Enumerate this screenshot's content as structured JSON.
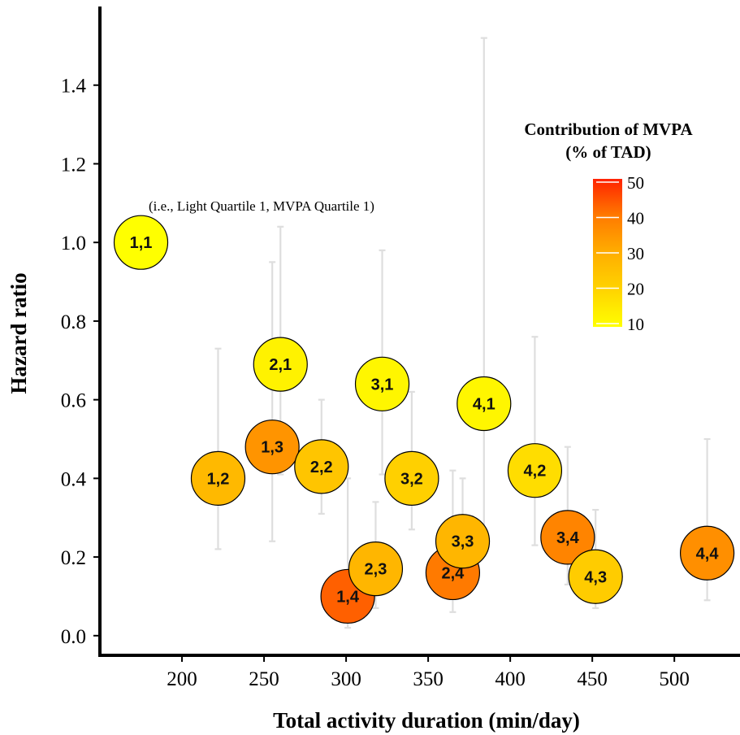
{
  "chart_data": {
    "type": "scatter",
    "xlabel": "Total activity duration (min/day)",
    "ylabel": "Hazard ratio",
    "xlim": [
      150,
      540
    ],
    "ylim": [
      -0.05,
      1.6
    ],
    "x_ticks": [
      200,
      250,
      300,
      350,
      400,
      450,
      500
    ],
    "y_ticks": [
      0.0,
      0.2,
      0.4,
      0.6,
      0.8,
      1.0,
      1.2,
      1.4
    ],
    "x_tick_labels": [
      "200",
      "250",
      "300",
      "350",
      "400",
      "450",
      "500"
    ],
    "y_tick_labels": [
      "0.0",
      "0.2",
      "0.4",
      "0.6",
      "0.8",
      "1.0",
      "1.2",
      "1.4"
    ],
    "annotation": "(i.e., Light Quartile 1, MVPA Quartile 1)",
    "legend": {
      "title_line1": "Contribution of MVPA",
      "title_line2": "(% of TAD)",
      "position": "right",
      "range": [
        10,
        50
      ],
      "ticks": [
        10,
        20,
        30,
        40,
        50
      ],
      "tick_labels": [
        "10",
        "20",
        "30",
        "40",
        "50"
      ],
      "colors": [
        "#ffff00",
        "#ffd400",
        "#ffae00",
        "#ff7a00",
        "#ff2200"
      ]
    },
    "points": [
      {
        "label": "1,1",
        "x": 175,
        "y": 1.0,
        "ci_low": null,
        "ci_high": null,
        "mvpa_pct": 10
      },
      {
        "label": "1,2",
        "x": 222,
        "y": 0.4,
        "ci_low": 0.22,
        "ci_high": 0.73,
        "mvpa_pct": 27
      },
      {
        "label": "1,3",
        "x": 255,
        "y": 0.48,
        "ci_low": 0.24,
        "ci_high": 0.95,
        "mvpa_pct": 35
      },
      {
        "label": "1,4",
        "x": 301,
        "y": 0.1,
        "ci_low": 0.02,
        "ci_high": 0.4,
        "mvpa_pct": 43
      },
      {
        "label": "2,1",
        "x": 260,
        "y": 0.69,
        "ci_low": 0.41,
        "ci_high": 1.04,
        "mvpa_pct": 13
      },
      {
        "label": "2,2",
        "x": 285,
        "y": 0.43,
        "ci_low": 0.31,
        "ci_high": 0.6,
        "mvpa_pct": 24
      },
      {
        "label": "2,3",
        "x": 318,
        "y": 0.17,
        "ci_low": 0.07,
        "ci_high": 0.34,
        "mvpa_pct": 28
      },
      {
        "label": "2,4",
        "x": 365,
        "y": 0.16,
        "ci_low": 0.06,
        "ci_high": 0.42,
        "mvpa_pct": 40
      },
      {
        "label": "3,1",
        "x": 322,
        "y": 0.64,
        "ci_low": 0.41,
        "ci_high": 0.98,
        "mvpa_pct": 12
      },
      {
        "label": "3,2",
        "x": 340,
        "y": 0.4,
        "ci_low": 0.27,
        "ci_high": 0.62,
        "mvpa_pct": 21
      },
      {
        "label": "3,3",
        "x": 371,
        "y": 0.24,
        "ci_low": 0.1,
        "ci_high": 0.4,
        "mvpa_pct": 28
      },
      {
        "label": "3,4",
        "x": 435,
        "y": 0.25,
        "ci_low": 0.13,
        "ci_high": 0.48,
        "mvpa_pct": 38
      },
      {
        "label": "4,1",
        "x": 384,
        "y": 0.59,
        "ci_low": 0.23,
        "ci_high": 1.52,
        "mvpa_pct": 12
      },
      {
        "label": "4,2",
        "x": 415,
        "y": 0.42,
        "ci_low": 0.23,
        "ci_high": 0.76,
        "mvpa_pct": 18
      },
      {
        "label": "4,3",
        "x": 452,
        "y": 0.15,
        "ci_low": 0.07,
        "ci_high": 0.32,
        "mvpa_pct": 22
      },
      {
        "label": "4,4",
        "x": 520,
        "y": 0.21,
        "ci_low": 0.09,
        "ci_high": 0.5,
        "mvpa_pct": 36
      }
    ]
  }
}
